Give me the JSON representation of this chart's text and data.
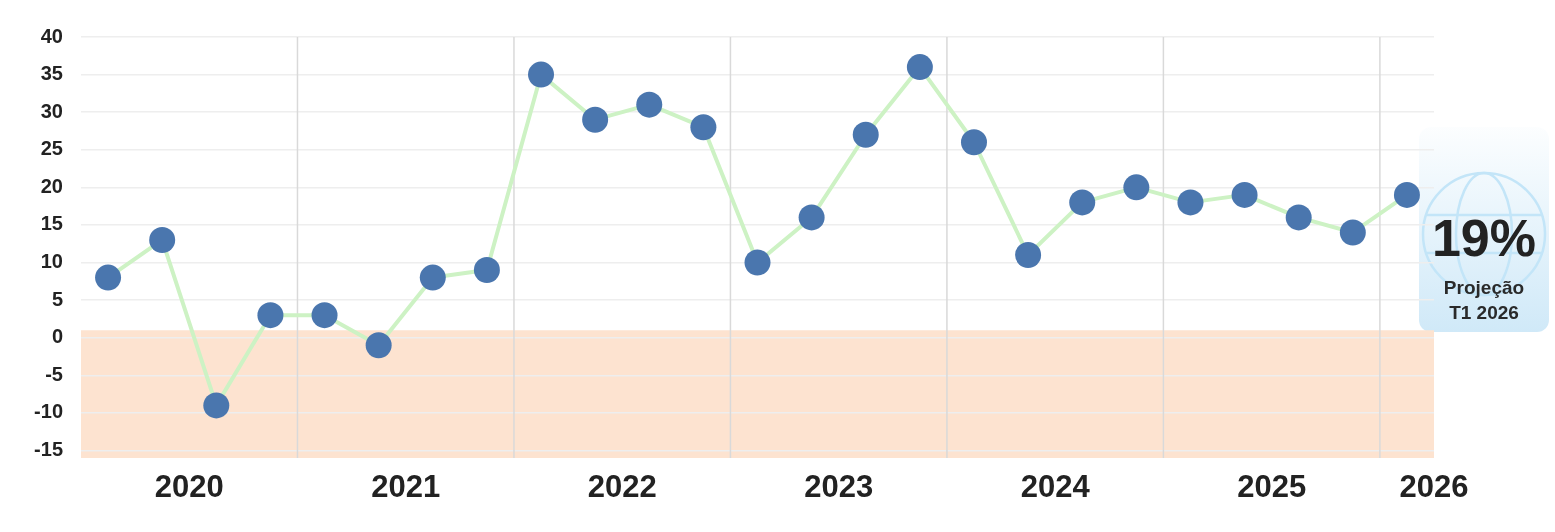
{
  "chart_data": {
    "type": "line",
    "x": [
      2020.125,
      2020.375,
      2020.625,
      2020.875,
      2021.125,
      2021.375,
      2021.625,
      2021.875,
      2022.125,
      2022.375,
      2022.625,
      2022.875,
      2023.125,
      2023.375,
      2023.625,
      2023.875,
      2024.125,
      2024.375,
      2024.625,
      2024.875,
      2025.125,
      2025.375,
      2025.625,
      2025.875,
      2026.125
    ],
    "series": [
      {
        "color": "#cdf2c4",
        "colors": [
          "#4a76ae",
          "#4a76ae",
          "#4a76ae",
          "#4a76ae",
          "#4a76ae",
          "#4a76ae",
          "#4a76ae",
          "#4a76ae",
          "#4a76ae",
          "#4a76ae",
          "#4a76ae",
          "#4a76ae",
          "#4a76ae",
          "#4a76ae",
          "#4a76ae",
          "#4a76ae",
          "#4a76ae",
          "#4a76ae",
          "#4a76ae",
          "#4a76ae",
          "#4a76ae",
          "#4a76ae",
          "#4a76ae",
          "#4a76ae",
          "#4a76ae"
        ],
        "values": [
          8,
          13,
          -9,
          3,
          3,
          -1,
          8,
          9,
          35,
          29,
          31,
          28,
          10,
          16,
          27,
          36,
          26,
          11,
          18,
          20,
          18,
          19,
          16,
          14,
          19
        ]
      }
    ],
    "xlim": [
      2020,
      2026.25
    ],
    "xticks": [
      {
        "value": 2020.5,
        "label": "2020"
      },
      {
        "value": 2021.5,
        "label": "2021"
      },
      {
        "value": 2022.5,
        "label": "2022"
      },
      {
        "value": 2023.5,
        "label": "2023"
      },
      {
        "value": 2024.5,
        "label": "2024"
      },
      {
        "value": 2025.5,
        "label": "2025"
      },
      {
        "value": 2026.25,
        "label": "2026"
      }
    ],
    "ylim": [
      -16,
      40
    ],
    "yticks": [
      -15,
      -10,
      -5,
      0,
      5,
      10,
      15,
      20,
      25,
      30,
      35,
      40
    ],
    "grid": "y",
    "marker": "circle",
    "line_style": "solid",
    "bands": [
      {
        "axis": "y",
        "from": -16,
        "to": 1,
        "color": "#fde3d0"
      }
    ],
    "ref_lines": [
      {
        "axis": "x",
        "value": 2021,
        "color": "#d9d9d9"
      },
      {
        "axis": "x",
        "value": 2022,
        "color": "#d9d9d9"
      },
      {
        "axis": "x",
        "value": 2023,
        "color": "#d9d9d9"
      },
      {
        "axis": "x",
        "value": 2024,
        "color": "#d9d9d9"
      },
      {
        "axis": "x",
        "value": 2025,
        "color": "#d9d9d9"
      },
      {
        "axis": "x",
        "value": 2026,
        "color": "#d9d9d9"
      }
    ],
    "annotations": [
      "19%",
      "Projeção T1 2026"
    ]
  }
}
